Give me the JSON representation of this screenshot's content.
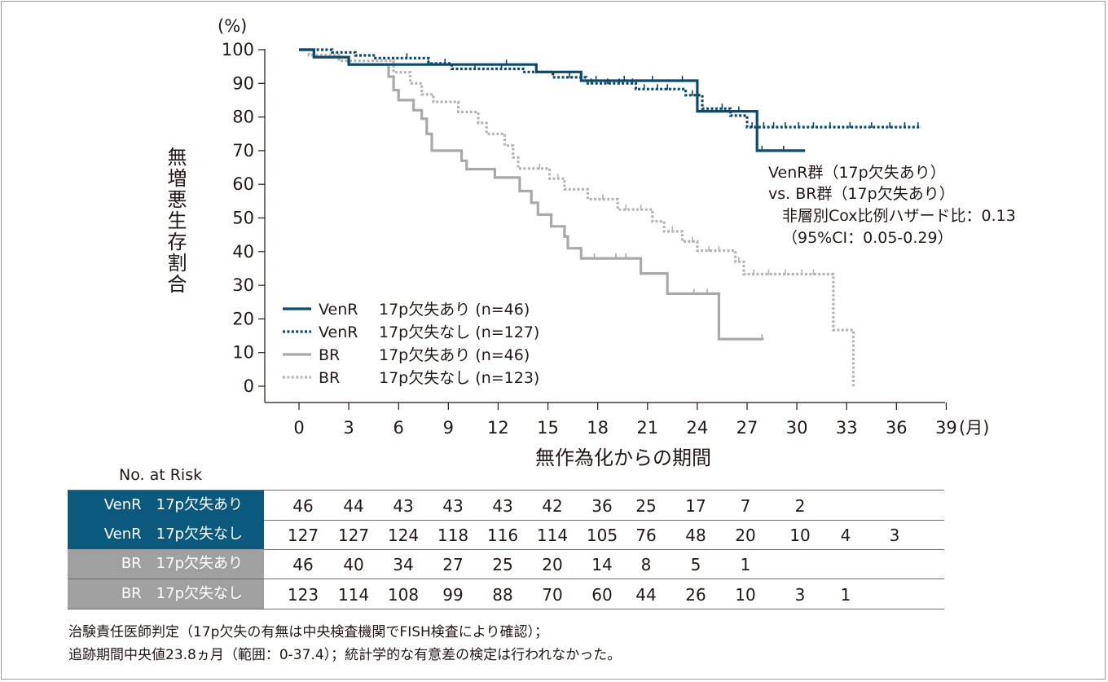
{
  "chart_data": {
    "type": "line",
    "subtype": "kaplan-meier",
    "ylabel": "無増悪生存割合",
    "yunit": "(%)",
    "xlabel": "無作為化からの期間",
    "xunit": "(月)",
    "ylim": [
      0,
      100
    ],
    "xlim": [
      0,
      39
    ],
    "yticks": [
      0,
      10,
      20,
      30,
      40,
      50,
      60,
      70,
      80,
      90,
      100
    ],
    "xticks": [
      0,
      3,
      6,
      9,
      12,
      15,
      18,
      21,
      24,
      27,
      30,
      33,
      36,
      39
    ],
    "legend_position": "bottom-left",
    "series": [
      {
        "name": "VenR　17p欠失あり (n=46)",
        "legend_parts": [
          "VenR",
          "17p欠失あり (n=46)"
        ],
        "color": "#0b4a6e",
        "style": "solid",
        "points": [
          [
            0,
            100
          ],
          [
            0.9,
            100
          ],
          [
            0.9,
            97.8
          ],
          [
            3,
            97.8
          ],
          [
            3,
            95.6
          ],
          [
            14.3,
            95.6
          ],
          [
            14.3,
            93.4
          ],
          [
            17,
            93.4
          ],
          [
            17,
            90.8
          ],
          [
            24,
            90.8
          ],
          [
            24,
            81.7
          ],
          [
            27.6,
            81.7
          ],
          [
            27.6,
            70
          ],
          [
            30.5,
            70
          ]
        ],
        "censor_x": [
          7.8,
          12.5,
          17.9,
          19.6,
          21.3,
          23.1,
          26.5,
          27.9,
          29.2
        ]
      },
      {
        "name": "VenR　17p欠失なし (n=127)",
        "legend_parts": [
          "VenR",
          "17p欠失なし (n=127)"
        ],
        "color": "#0b4a6e",
        "style": "dotted",
        "points": [
          [
            0,
            100
          ],
          [
            2,
            100
          ],
          [
            2,
            99.2
          ],
          [
            3.4,
            99.2
          ],
          [
            3.4,
            98.3
          ],
          [
            4.6,
            98.3
          ],
          [
            4.6,
            97.5
          ],
          [
            7.8,
            97.5
          ],
          [
            7.8,
            95.9
          ],
          [
            9.2,
            95.9
          ],
          [
            9.2,
            94.3
          ],
          [
            13.5,
            94.3
          ],
          [
            13.5,
            93.4
          ],
          [
            15.3,
            93.4
          ],
          [
            15.3,
            91.8
          ],
          [
            17.3,
            91.8
          ],
          [
            17.3,
            90
          ],
          [
            20.3,
            90
          ],
          [
            20.3,
            88.3
          ],
          [
            23.3,
            88.3
          ],
          [
            23.3,
            86.5
          ],
          [
            24.3,
            86.5
          ],
          [
            24.3,
            82.5
          ],
          [
            26,
            82.5
          ],
          [
            26,
            80.4
          ],
          [
            27,
            80.4
          ],
          [
            27,
            77
          ],
          [
            37.5,
            77
          ]
        ],
        "censor_x": [
          6.5,
          8.8,
          10.6,
          12.2,
          16.3,
          17.6,
          18.6,
          19.3,
          20.1,
          20.8,
          21.6,
          22.2,
          23.7,
          25.5,
          27.3,
          28,
          28.6,
          29.3,
          30.1,
          31,
          32,
          33.2,
          34.5,
          35.6,
          36.5,
          37.3
        ]
      },
      {
        "name": "BR　17p欠失あり (n=46)",
        "legend_parts": [
          "BR",
          "17p欠失あり (n=46)"
        ],
        "color": "#a9a9a9",
        "style": "solid",
        "points": [
          [
            0,
            100
          ],
          [
            0.9,
            100
          ],
          [
            0.9,
            97.8
          ],
          [
            3,
            97.8
          ],
          [
            3,
            95.6
          ],
          [
            5.4,
            95.6
          ],
          [
            5.4,
            92
          ],
          [
            5.7,
            92
          ],
          [
            5.7,
            88
          ],
          [
            6,
            88
          ],
          [
            6,
            85
          ],
          [
            6.9,
            85
          ],
          [
            6.9,
            82
          ],
          [
            7.4,
            82
          ],
          [
            7.4,
            79.5
          ],
          [
            7.7,
            79.5
          ],
          [
            7.7,
            75
          ],
          [
            8,
            75
          ],
          [
            8,
            70
          ],
          [
            9.8,
            70
          ],
          [
            9.8,
            67
          ],
          [
            10.1,
            67
          ],
          [
            10.1,
            64.5
          ],
          [
            11.8,
            64.5
          ],
          [
            11.8,
            62
          ],
          [
            13.3,
            62
          ],
          [
            13.3,
            58
          ],
          [
            14,
            58
          ],
          [
            14,
            54.5
          ],
          [
            14.4,
            54.5
          ],
          [
            14.4,
            51
          ],
          [
            15.2,
            51
          ],
          [
            15.2,
            47.5
          ],
          [
            16,
            47.5
          ],
          [
            16,
            44.5
          ],
          [
            16.2,
            44.5
          ],
          [
            16.2,
            41
          ],
          [
            17,
            41
          ],
          [
            17,
            38
          ],
          [
            20.6,
            38
          ],
          [
            20.6,
            33.5
          ],
          [
            22.2,
            33.5
          ],
          [
            22.2,
            27.5
          ],
          [
            25.3,
            27.5
          ],
          [
            25.3,
            14
          ],
          [
            28,
            14
          ]
        ],
        "censor_x": [
          17.8,
          19.1,
          19.7,
          23.8,
          24.6,
          27.9
        ]
      },
      {
        "name": "BR　17p欠失なし (n=123)",
        "legend_parts": [
          "BR",
          "17p欠失なし (n=123)"
        ],
        "color": "#b4b4b4",
        "style": "dotted",
        "points": [
          [
            0,
            100
          ],
          [
            0.6,
            100
          ],
          [
            0.6,
            98.4
          ],
          [
            2.4,
            98.4
          ],
          [
            2.4,
            96.7
          ],
          [
            5.7,
            96.7
          ],
          [
            5.7,
            93.3
          ],
          [
            6.7,
            93.3
          ],
          [
            6.7,
            90
          ],
          [
            7.4,
            90
          ],
          [
            7.4,
            86.7
          ],
          [
            8.1,
            86.7
          ],
          [
            8.1,
            84.5
          ],
          [
            9.6,
            84.5
          ],
          [
            9.6,
            81.5
          ],
          [
            10.8,
            81.5
          ],
          [
            10.8,
            78.2
          ],
          [
            11.3,
            78.2
          ],
          [
            11.3,
            75
          ],
          [
            12.4,
            75
          ],
          [
            12.4,
            71.5
          ],
          [
            12.9,
            71.5
          ],
          [
            12.9,
            68
          ],
          [
            13.2,
            68
          ],
          [
            13.2,
            64.7
          ],
          [
            15.1,
            64.7
          ],
          [
            15.1,
            61.7
          ],
          [
            16,
            61.7
          ],
          [
            16,
            58.5
          ],
          [
            17.4,
            58.5
          ],
          [
            17.4,
            55.6
          ],
          [
            19.2,
            55.6
          ],
          [
            19.2,
            52.5
          ],
          [
            21.3,
            52.5
          ],
          [
            21.3,
            49
          ],
          [
            22,
            49
          ],
          [
            22,
            46
          ],
          [
            23.1,
            46
          ],
          [
            23.1,
            43
          ],
          [
            24,
            43
          ],
          [
            24,
            40.3
          ],
          [
            26.3,
            40.3
          ],
          [
            26.3,
            37
          ],
          [
            26.8,
            37
          ],
          [
            26.8,
            33.3
          ],
          [
            32.2,
            33.3
          ],
          [
            32.2,
            16.7
          ],
          [
            33.4,
            16.7
          ],
          [
            33.4,
            0
          ]
        ],
        "censor_x": [
          14.5,
          15.6,
          18.3,
          19.7,
          20.6,
          22.5,
          23.7,
          24.7,
          25.3,
          26.5,
          27.4,
          28.3,
          29.3,
          30.3,
          31
        ]
      }
    ],
    "annotation_lines": [
      "VenR群（17p欠失あり）",
      "vs. BR群（17p欠失あり）",
      "非層別Cox比例ハザード比：0.13",
      "（95%CI：0.05-0.29）"
    ]
  },
  "risk_table": {
    "title": "No. at Risk",
    "rows": [
      {
        "label": "VenR　17p欠失あり",
        "bg": "#0b5a7e",
        "values": [
          "46",
          "44",
          "43",
          "43",
          "43",
          "42",
          "36",
          "25",
          "17",
          "7",
          "2",
          "",
          ""
        ]
      },
      {
        "label": "VenR　17p欠失なし",
        "bg": "#0b5a7e",
        "values": [
          "127",
          "127",
          "124",
          "118",
          "116",
          "114",
          "105",
          "76",
          "48",
          "20",
          "10",
          "4",
          "3"
        ]
      },
      {
        "label": "BR　17p欠失あり",
        "bg": "#a0a0a0",
        "values": [
          "46",
          "40",
          "34",
          "27",
          "25",
          "20",
          "14",
          "8",
          "5",
          "1",
          "",
          "",
          ""
        ]
      },
      {
        "label": "BR　17p欠失なし",
        "bg": "#a0a0a0",
        "values": [
          "123",
          "114",
          "108",
          "99",
          "88",
          "70",
          "60",
          "44",
          "26",
          "10",
          "3",
          "1",
          ""
        ]
      }
    ]
  },
  "footnotes": [
    "治験責任医師判定（17p欠失の有無は中央検査機関でFISH検査により確認）；",
    "追跡期間中央値23.8ヵ月（範囲：0-37.4）；統計学的な有意差の検定は行われなかった。"
  ]
}
